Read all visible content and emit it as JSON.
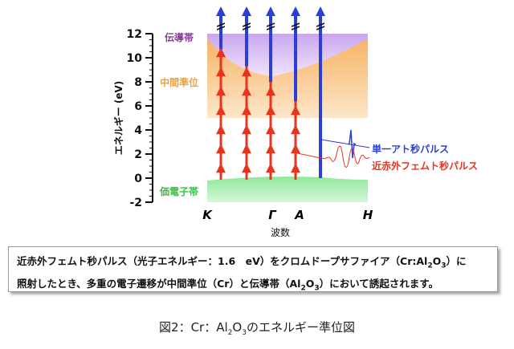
{
  "diagram": {
    "y_axis_label": "エネルギー (eV)",
    "x_axis_label": "波数",
    "y_ticks": [
      "12",
      "10",
      "8",
      "6",
      "4",
      "2",
      "0",
      "-2"
    ],
    "k_points": [
      "K",
      "Γ",
      "A",
      "H"
    ],
    "bands": {
      "conduction": "伝導帯",
      "intermediate": "中間準位",
      "valence": "価電子帯"
    },
    "columns": [
      {
        "red_top_ev": 10.7
      },
      {
        "red_top_ev": 9.3
      },
      {
        "red_top_ev": 8.0
      },
      {
        "red_top_ev": 6.4
      },
      {
        "red_top_ev": 0
      }
    ],
    "photon_energy_ev": 1.6,
    "pulses": {
      "attosecond": "単一アト秒パルス",
      "femtosecond": "近赤外フェムト秒パルス"
    },
    "colors": {
      "red": "#e8331f",
      "blue": "#2a3fd6",
      "purple": "#8a3a9a",
      "orange": "#f3a03a",
      "green": "#3fbf4a"
    }
  },
  "description": {
    "line1_a": "近赤外フェムト秒パルス（光子エネルギー：1.6　eV）をクロムドープサファイア（Cr:Al",
    "line1_b": "O",
    "line1_c": "）に",
    "line2_a": "照射したとき、多重の電子遷移が中間準位（Cr）と伝導帯（Al",
    "line2_b": "O",
    "line2_c": "）において誘起されます。",
    "sub2": "2",
    "sub3": "3"
  },
  "caption": {
    "a": "図2：Cr：Al",
    "b": "O",
    "c": "のエネルギー準位図",
    "sub2": "2",
    "sub3": "3"
  }
}
